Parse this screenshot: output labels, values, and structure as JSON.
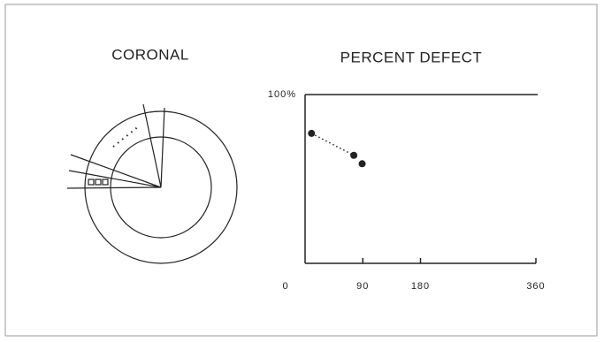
{
  "diagram": {
    "title": "CORONAL"
  },
  "chart_data": {
    "type": "scatter",
    "title": "PERCENT DEFECT",
    "x": [
      10,
      76,
      89
    ],
    "values": [
      77,
      64,
      59
    ],
    "color": "#222222",
    "xlim": [
      0,
      360
    ],
    "xticks": [
      0,
      90,
      180,
      360
    ],
    "ylim": [
      0,
      100
    ],
    "yticks": [
      {
        "value": 100,
        "label": "100%"
      }
    ]
  }
}
